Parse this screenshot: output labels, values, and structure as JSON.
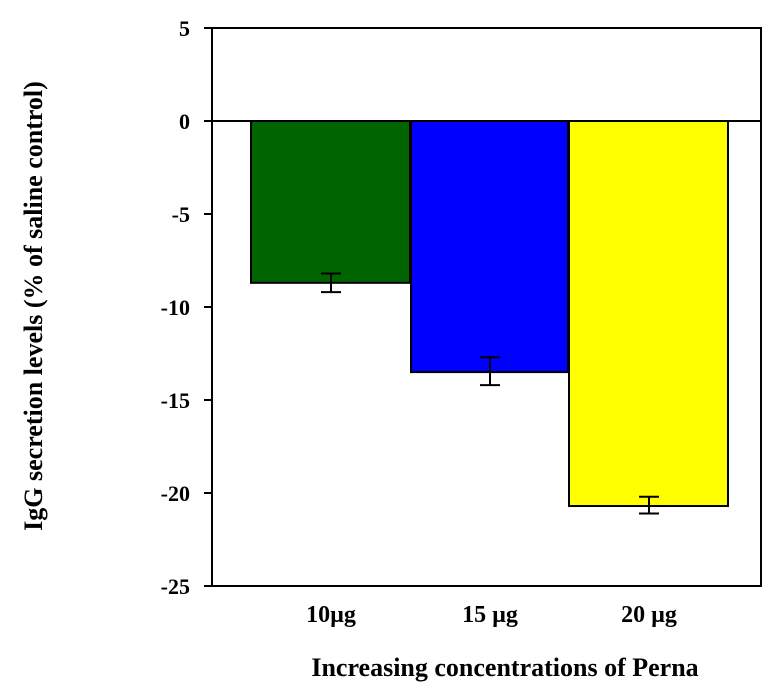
{
  "chart_data": {
    "type": "bar",
    "categories": [
      "10µg",
      "15 µg",
      "20 µg"
    ],
    "values": [
      -8.7,
      -13.5,
      -20.7
    ],
    "error_low": [
      -9.2,
      -14.2,
      -21.1
    ],
    "error_high": [
      -8.2,
      -12.7,
      -20.2
    ],
    "colors": [
      "#006400",
      "#0000ff",
      "#ffff00"
    ],
    "xlabel": "Increasing concentrations of Perna",
    "ylabel": "IgG secretion levels (% of saline control)",
    "ylim": [
      -25,
      5
    ],
    "yticks": [
      5,
      0,
      -5,
      -10,
      -15,
      -20,
      -25
    ],
    "ytick_labels": [
      "5",
      "0",
      "-5",
      "-10",
      "-15",
      "-20",
      "-25"
    ],
    "grid": false,
    "legend": "none"
  }
}
